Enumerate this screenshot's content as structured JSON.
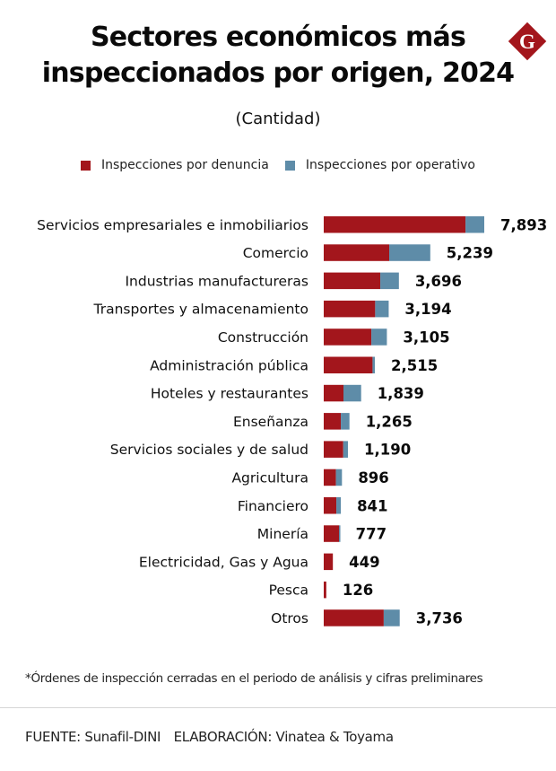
{
  "header": {
    "title_line1": "Sectores económicos más",
    "title_line2": "inspeccionados por origen, 2024",
    "subtitle": "(Cantidad)",
    "logo_letter": "G",
    "logo_icon": "brand-diamond-logo-icon"
  },
  "colors": {
    "denuncia": "#A3161C",
    "operativo": "#5E8CA8",
    "logo": "#A3161C"
  },
  "legend": [
    {
      "label": "Inspecciones por denuncia",
      "color_key": "denuncia"
    },
    {
      "label": "Inspecciones por operativo",
      "color_key": "operativo"
    }
  ],
  "chart_data": {
    "type": "bar",
    "orientation": "horizontal",
    "stacked": true,
    "title": "Sectores económicos más inspeccionados por origen, 2024",
    "subtitle": "(Cantidad)",
    "xlabel": "",
    "ylabel": "",
    "grid": false,
    "legend_position": "top",
    "xlim": [
      0,
      7893
    ],
    "categories": [
      "Servicios empresariales e inmobiliarios",
      "Comercio",
      "Industrias manufactureras",
      "Transportes y almacenamiento",
      "Construcción",
      "Administración pública",
      "Hoteles y restaurantes",
      "Enseñanza",
      "Servicios sociales y de salud",
      "Agricultura",
      "Financiero",
      "Minería",
      "Electricidad, Gas y Agua",
      "Pesca",
      "Otros"
    ],
    "series": [
      {
        "name": "Inspecciones por denuncia",
        "values": [
          6970,
          3220,
          2780,
          2530,
          2340,
          2400,
          970,
          840,
          960,
          600,
          620,
          750,
          449,
          126,
          2950
        ]
      },
      {
        "name": "Inspecciones por operativo",
        "values": [
          923,
          2019,
          916,
          664,
          765,
          115,
          869,
          425,
          230,
          296,
          221,
          27,
          0,
          0,
          786
        ]
      }
    ],
    "totals": [
      7893,
      5239,
      3696,
      3194,
      3105,
      2515,
      1839,
      1265,
      1190,
      896,
      841,
      777,
      449,
      126,
      3736
    ],
    "total_labels": [
      "7,893",
      "5,239",
      "3,696",
      "3,194",
      "3,105",
      "2,515",
      "1,839",
      "1,265",
      "1,190",
      "896",
      "841",
      "777",
      "449",
      "126",
      "3,736"
    ]
  },
  "footer": {
    "footnote": "*Órdenes de inspección cerradas en el periodo de análisis y cifras preliminares",
    "source": "FUENTE: Sunafil-DINI",
    "credit": "ELABORACIÓN: Vinatea & Toyama"
  }
}
